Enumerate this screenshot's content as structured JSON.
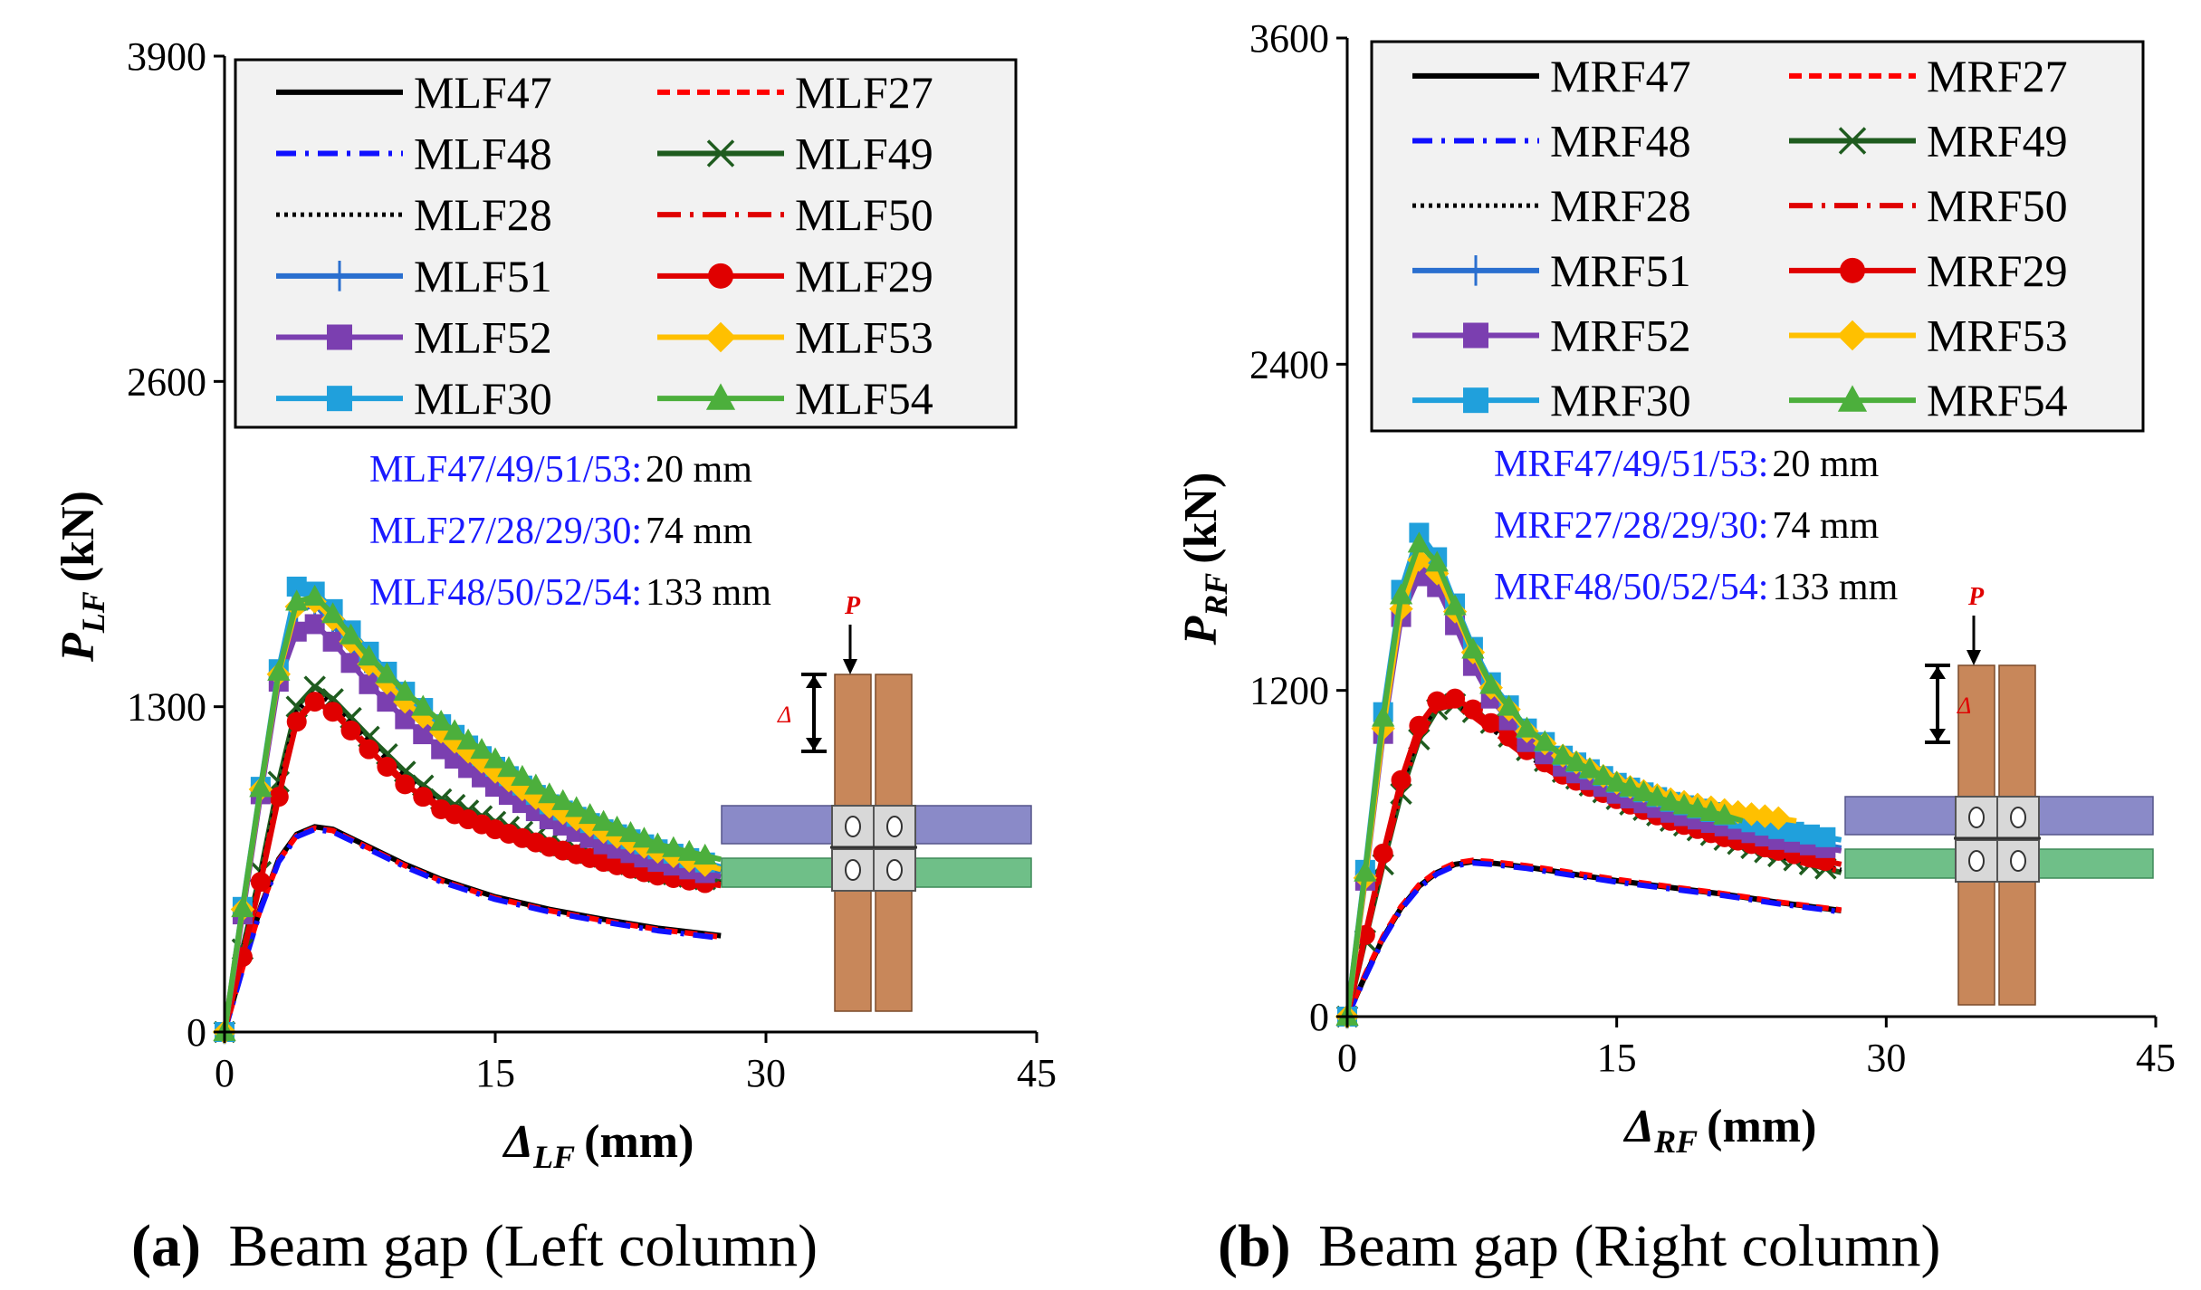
{
  "figure": {
    "charts": [
      {
        "id": "a",
        "caption_letter": "(a)",
        "caption_text": "Beam gap (Left column)",
        "ylabel_main": "P",
        "ylabel_sub": "LF",
        "ylabel_unit": "(kN)",
        "xlabel_main": "Δ",
        "xlabel_sub": "LF",
        "xlabel_unit": "(mm)",
        "notes": [
          {
            "label": "MLF47/49/51/53:",
            "value": "20 mm"
          },
          {
            "label": "MLF27/28/29/30:",
            "value": "74 mm"
          },
          {
            "label": "MLF48/50/52/54:",
            "value": "133 mm"
          }
        ],
        "inset_p": "P",
        "inset_delta": "Δ"
      },
      {
        "id": "b",
        "caption_letter": "(b)",
        "caption_text": "Beam gap (Right column)",
        "ylabel_main": "P",
        "ylabel_sub": "RF",
        "ylabel_unit": "(kN)",
        "xlabel_main": "Δ",
        "xlabel_sub": "RF",
        "xlabel_unit": "(mm)",
        "notes": [
          {
            "label": "MRF47/49/51/53:",
            "value": "20 mm"
          },
          {
            "label": "MRF27/28/29/30:",
            "value": "74 mm"
          },
          {
            "label": "MRF48/50/52/54:",
            "value": "133 mm"
          }
        ],
        "inset_p": "P",
        "inset_delta": "Δ"
      }
    ]
  },
  "chart_data": [
    {
      "type": "line",
      "title": "(a) Beam gap (Left column)",
      "xlabel": "ΔLF (mm)",
      "ylabel": "PLF (kN)",
      "xlim": [
        0,
        45
      ],
      "ylim": [
        0,
        3900
      ],
      "xticks": [
        "0",
        "15",
        "30",
        "45"
      ],
      "yticks": [
        "0",
        "1300",
        "2600",
        "3900"
      ],
      "legend_position": "top",
      "series": [
        {
          "name": "MLF47",
          "group": "low",
          "x": [
            0,
            1,
            2,
            3,
            4,
            5,
            6,
            8,
            10,
            12,
            15,
            18,
            21,
            24,
            27.5
          ],
          "y": [
            0,
            260,
            500,
            690,
            790,
            820,
            810,
            740,
            670,
            610,
            540,
            490,
            450,
            415,
            385
          ]
        },
        {
          "name": "MLF27",
          "group": "low",
          "x": [
            0,
            1,
            2,
            3,
            4,
            5,
            6,
            8,
            10,
            12,
            15,
            18,
            21,
            24,
            27.5
          ],
          "y": [
            0,
            255,
            495,
            685,
            785,
            815,
            805,
            735,
            665,
            605,
            535,
            485,
            445,
            410,
            380
          ]
        },
        {
          "name": "MLF48",
          "group": "low",
          "x": [
            0,
            1,
            2,
            3,
            4,
            5,
            6,
            8,
            10,
            12,
            15,
            18,
            21,
            24,
            27.5
          ],
          "y": [
            0,
            250,
            490,
            680,
            780,
            810,
            800,
            730,
            660,
            600,
            530,
            480,
            440,
            405,
            375
          ]
        },
        {
          "name": "MLF49",
          "group": "mid",
          "x": [
            0,
            1,
            2,
            3,
            4,
            5,
            6,
            8,
            10,
            12,
            15,
            18,
            21,
            24,
            27.5
          ],
          "y": [
            0,
            330,
            640,
            1000,
            1300,
            1380,
            1330,
            1180,
            1040,
            930,
            840,
            760,
            700,
            640,
            600
          ]
        },
        {
          "name": "MLF28",
          "group": "mid",
          "x": [
            0,
            1,
            2,
            3,
            4,
            5,
            6,
            8,
            10,
            12,
            15,
            18,
            21,
            24,
            27.5
          ],
          "y": [
            0,
            320,
            630,
            980,
            1280,
            1360,
            1310,
            1160,
            1020,
            910,
            830,
            750,
            690,
            635,
            595
          ]
        },
        {
          "name": "MLF50",
          "group": "mid",
          "x": [
            0,
            1,
            2,
            3,
            4,
            5,
            6,
            8,
            10,
            12,
            15,
            18,
            21,
            24,
            27.5
          ],
          "y": [
            0,
            310,
            610,
            960,
            1250,
            1330,
            1290,
            1140,
            1000,
            900,
            820,
            745,
            685,
            630,
            590
          ]
        },
        {
          "name": "MLF29",
          "group": "mid",
          "x": [
            0,
            1,
            2,
            3,
            4,
            5,
            6,
            8,
            10,
            12,
            15,
            18,
            21,
            24,
            27.5
          ],
          "y": [
            0,
            300,
            600,
            940,
            1240,
            1320,
            1280,
            1130,
            990,
            890,
            810,
            740,
            680,
            625,
            585
          ]
        },
        {
          "name": "MLF51",
          "group": "high",
          "x": [
            0,
            1,
            2,
            3,
            4,
            5,
            6,
            8,
            10,
            12,
            15,
            18,
            21,
            24,
            27.5
          ],
          "y": [
            0,
            480,
            960,
            1420,
            1680,
            1710,
            1630,
            1440,
            1300,
            1180,
            1020,
            880,
            780,
            700,
            640
          ]
        },
        {
          "name": "MLF52",
          "group": "high",
          "x": [
            0,
            1,
            2,
            3,
            4,
            5,
            6,
            8,
            10,
            12,
            15,
            18,
            21,
            24,
            27.5
          ],
          "y": [
            0,
            470,
            950,
            1400,
            1600,
            1630,
            1560,
            1390,
            1250,
            1130,
            980,
            850,
            750,
            680,
            620
          ]
        },
        {
          "name": "MLF30",
          "group": "high",
          "x": [
            0,
            1,
            2,
            3,
            4,
            5,
            6,
            8,
            10,
            12,
            15,
            18,
            21,
            24,
            27.5
          ],
          "y": [
            0,
            500,
            980,
            1450,
            1780,
            1760,
            1690,
            1520,
            1360,
            1230,
            1060,
            910,
            810,
            730,
            660
          ]
        },
        {
          "name": "MLF53",
          "group": "high",
          "x": [
            0,
            1,
            2,
            3,
            4,
            5,
            6,
            8,
            10,
            12,
            15,
            18,
            21,
            24,
            27.5
          ],
          "y": [
            0,
            490,
            970,
            1430,
            1700,
            1720,
            1650,
            1470,
            1320,
            1200,
            1040,
            900,
            800,
            720,
            650
          ]
        },
        {
          "name": "MLF54",
          "group": "high",
          "x": [
            0,
            1,
            2,
            3,
            4,
            5,
            6,
            8,
            10,
            12,
            15,
            18,
            21,
            24,
            27.5
          ],
          "y": [
            0,
            495,
            975,
            1440,
            1720,
            1740,
            1670,
            1500,
            1360,
            1240,
            1090,
            950,
            840,
            750,
            690
          ]
        }
      ]
    },
    {
      "type": "line",
      "title": "(b) Beam gap (Right column)",
      "xlabel": "ΔRF (mm)",
      "ylabel": "PRF (kN)",
      "xlim": [
        0,
        45
      ],
      "ylim": [
        0,
        3600
      ],
      "xticks": [
        "0",
        "15",
        "30",
        "45"
      ],
      "yticks": [
        "0",
        "1200",
        "2400",
        "3600"
      ],
      "legend_position": "top",
      "series": [
        {
          "name": "MRF47",
          "group": "low",
          "x": [
            0,
            1,
            2,
            3,
            4,
            5,
            6,
            7,
            8,
            10,
            12,
            15,
            18,
            21,
            24,
            27.5
          ],
          "y": [
            0,
            150,
            290,
            400,
            480,
            530,
            560,
            570,
            565,
            550,
            530,
            500,
            475,
            450,
            420,
            390
          ]
        },
        {
          "name": "MRF27",
          "group": "low",
          "x": [
            0,
            1,
            2,
            3,
            4,
            5,
            6,
            7,
            8,
            10,
            12,
            15,
            18,
            21,
            24,
            27.5
          ],
          "y": [
            0,
            155,
            295,
            405,
            485,
            535,
            565,
            575,
            570,
            555,
            535,
            505,
            478,
            452,
            422,
            392
          ]
        },
        {
          "name": "MRF48",
          "group": "low",
          "x": [
            0,
            1,
            2,
            3,
            4,
            5,
            6,
            7,
            8,
            10,
            12,
            15,
            18,
            21,
            24,
            27.5
          ],
          "y": [
            0,
            145,
            285,
            395,
            475,
            525,
            555,
            565,
            560,
            545,
            525,
            495,
            470,
            445,
            415,
            385
          ]
        },
        {
          "name": "MRF49",
          "group": "mid",
          "x": [
            0,
            1,
            2,
            3,
            4,
            5,
            6,
            7,
            8,
            10,
            12,
            15,
            18,
            21,
            24,
            27.5
          ],
          "y": [
            0,
            280,
            560,
            820,
            1020,
            1130,
            1150,
            1120,
            1080,
            980,
            900,
            800,
            720,
            650,
            590,
            530
          ]
        },
        {
          "name": "MRF28",
          "group": "mid",
          "x": [
            0,
            1,
            2,
            3,
            4,
            5,
            6,
            7,
            8,
            10,
            12,
            15,
            18,
            21,
            24,
            27.5
          ],
          "y": [
            0,
            290,
            580,
            840,
            1040,
            1140,
            1150,
            1110,
            1060,
            960,
            880,
            790,
            710,
            645,
            590,
            540
          ]
        },
        {
          "name": "MRF50",
          "group": "mid",
          "x": [
            0,
            1,
            2,
            3,
            4,
            5,
            6,
            7,
            8,
            10,
            12,
            15,
            18,
            21,
            24,
            27.5
          ],
          "y": [
            0,
            285,
            570,
            830,
            1030,
            1135,
            1145,
            1105,
            1055,
            955,
            875,
            785,
            705,
            640,
            585,
            535
          ]
        },
        {
          "name": "MRF29",
          "group": "mid",
          "x": [
            0,
            1,
            2,
            3,
            4,
            5,
            6,
            7,
            8,
            10,
            12,
            15,
            18,
            21,
            24,
            27.5
          ],
          "y": [
            0,
            300,
            600,
            870,
            1070,
            1160,
            1170,
            1130,
            1080,
            980,
            890,
            800,
            720,
            660,
            610,
            560
          ]
        },
        {
          "name": "MRF51",
          "group": "high",
          "x": [
            0,
            1,
            2,
            3,
            4,
            5,
            6,
            7,
            8,
            10,
            12,
            15,
            18,
            21,
            24,
            27.5
          ],
          "y": [
            0,
            520,
            1080,
            1520,
            1700,
            1640,
            1480,
            1320,
            1190,
            1020,
            930,
            830,
            760,
            710,
            660,
            620
          ]
        },
        {
          "name": "MRF52",
          "group": "high",
          "x": [
            0,
            1,
            2,
            3,
            4,
            5,
            6,
            7,
            8,
            10,
            12,
            15,
            18,
            21,
            24,
            27.5
          ],
          "y": [
            0,
            500,
            1040,
            1470,
            1620,
            1580,
            1440,
            1290,
            1170,
            1010,
            920,
            820,
            750,
            700,
            650,
            610
          ]
        },
        {
          "name": "MRF30",
          "group": "high",
          "x": [
            0,
            1,
            2,
            3,
            4,
            5,
            6,
            7,
            8,
            10,
            12,
            15,
            18,
            21,
            24,
            27.5
          ],
          "y": [
            0,
            540,
            1120,
            1570,
            1780,
            1690,
            1520,
            1360,
            1230,
            1060,
            960,
            860,
            790,
            740,
            690,
            650
          ]
        },
        {
          "name": "MRF53",
          "group": "high",
          "x": [
            0,
            1,
            2,
            3,
            4,
            5,
            6,
            7,
            8,
            10,
            12,
            15,
            18,
            21,
            24,
            25
          ],
          "y": [
            0,
            510,
            1060,
            1500,
            1680,
            1630,
            1490,
            1340,
            1210,
            1050,
            960,
            860,
            800,
            760,
            730,
            720
          ]
        },
        {
          "name": "MRF54",
          "group": "high",
          "x": [
            0,
            1,
            2,
            3,
            4,
            5,
            6,
            7,
            8,
            10,
            12,
            15,
            18,
            21,
            22
          ],
          "y": [
            0,
            530,
            1100,
            1550,
            1740,
            1670,
            1510,
            1350,
            1220,
            1060,
            960,
            860,
            790,
            740,
            720
          ]
        }
      ]
    }
  ],
  "legend": {
    "a": [
      "MLF47",
      "MLF27",
      "MLF48",
      "MLF49",
      "MLF28",
      "MLF50",
      "MLF51",
      "MLF29",
      "MLF52",
      "MLF53",
      "MLF30",
      "MLF54"
    ],
    "b": [
      "MRF47",
      "MRF27",
      "MRF48",
      "MRF49",
      "MRF28",
      "MRF50",
      "MRF51",
      "MRF29",
      "MRF52",
      "MRF53",
      "MRF30",
      "MRF54"
    ]
  },
  "series_styles": {
    "47": {
      "color": "#000000",
      "dash": "",
      "marker": "none",
      "width": 6
    },
    "27": {
      "color": "#ff0000",
      "dash": "14,8",
      "marker": "none",
      "width": 6
    },
    "48": {
      "color": "#1010ff",
      "dash": "22,10,4,10",
      "marker": "none",
      "width": 6
    },
    "49": {
      "color": "#1f5c1f",
      "dash": "",
      "marker": "x",
      "width": 6
    },
    "28": {
      "color": "#000000",
      "dash": "4,5",
      "marker": "none",
      "width": 5
    },
    "50": {
      "color": "#e00000",
      "dash": "26,10,4,10",
      "marker": "none",
      "width": 6
    },
    "51": {
      "color": "#2a6fcf",
      "dash": "",
      "marker": "plus",
      "width": 6
    },
    "29": {
      "color": "#e00000",
      "dash": "",
      "marker": "circle",
      "width": 6
    },
    "52": {
      "color": "#7b3fb0",
      "dash": "",
      "marker": "square",
      "width": 6
    },
    "53": {
      "color": "#ffc000",
      "dash": "",
      "marker": "diamond",
      "width": 6
    },
    "30": {
      "color": "#20a0dc",
      "dash": "",
      "marker": "square",
      "width": 6
    },
    "54": {
      "color": "#4caf3c",
      "dash": "",
      "marker": "triangle",
      "width": 6
    }
  }
}
